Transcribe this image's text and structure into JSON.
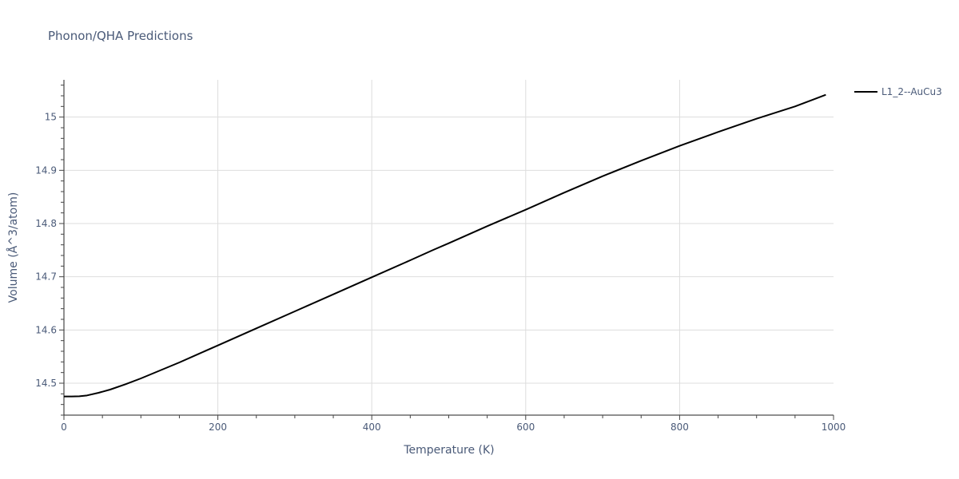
{
  "chart_data": {
    "type": "line",
    "title": "Phonon/QHA Predictions",
    "xlabel": "Temperature (K)",
    "ylabel": "Volume (Å^3/atom)",
    "xlim": [
      0,
      1000
    ],
    "ylim": [
      14.44,
      15.07
    ],
    "xticks": [
      0,
      200,
      400,
      600,
      800,
      1000
    ],
    "yticks": [
      14.5,
      14.6,
      14.7,
      14.8,
      14.9,
      15
    ],
    "xtick_labels": [
      "0",
      "200",
      "400",
      "600",
      "800",
      "1000"
    ],
    "ytick_labels": [
      "14.5",
      "14.6",
      "14.7",
      "14.8",
      "14.9",
      "15"
    ],
    "grid": true,
    "legend_position": "top-right",
    "series": [
      {
        "name": "L1_2--AuCu3",
        "color": "#000000",
        "x": [
          0,
          10,
          20,
          30,
          45,
          60,
          80,
          100,
          125,
          150,
          175,
          200,
          250,
          300,
          350,
          400,
          450,
          480,
          500,
          550,
          600,
          650,
          700,
          750,
          800,
          850,
          900,
          950,
          990
        ],
        "y": [
          14.475,
          14.475,
          14.4755,
          14.477,
          14.482,
          14.488,
          14.498,
          14.509,
          14.524,
          14.539,
          14.555,
          14.571,
          14.603,
          14.635,
          14.667,
          14.699,
          14.731,
          14.7505,
          14.763,
          14.795,
          14.826,
          14.858,
          14.889,
          14.918,
          14.946,
          14.972,
          14.997,
          15.02,
          15.042
        ]
      }
    ]
  }
}
